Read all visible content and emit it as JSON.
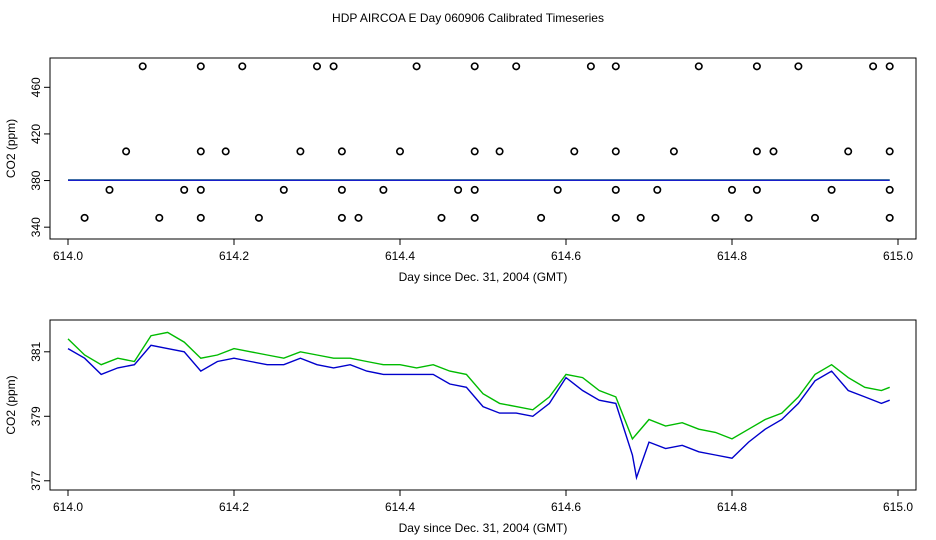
{
  "figure_title": "HDP AIRCOA E  Day 060906  Calibrated Timeseries",
  "colors": {
    "green": "#00bb00",
    "blue": "#0000cc",
    "points": "#000000"
  },
  "chart_data": [
    {
      "type": "scatter",
      "xlabel": "Day since Dec. 31, 2004 (GMT)",
      "ylabel": "CO2 (ppm)",
      "xlim": [
        614.0,
        615.0
      ],
      "ylim": [
        335,
        480
      ],
      "xticks": [
        "614.0",
        "614.2",
        "614.4",
        "614.6",
        "614.8",
        "615.0"
      ],
      "yticks": [
        "340",
        "380",
        "420",
        "460"
      ],
      "ytick_values": [
        340,
        380,
        420,
        460
      ],
      "xtick_values": [
        614.0,
        614.2,
        614.4,
        614.6,
        614.8,
        615.0
      ],
      "points": [
        [
          614.09,
          478
        ],
        [
          614.16,
          478
        ],
        [
          614.21,
          478
        ],
        [
          614.3,
          478
        ],
        [
          614.32,
          478
        ],
        [
          614.42,
          478
        ],
        [
          614.49,
          478
        ],
        [
          614.54,
          478
        ],
        [
          614.63,
          478
        ],
        [
          614.66,
          478
        ],
        [
          614.76,
          478
        ],
        [
          614.83,
          478
        ],
        [
          614.88,
          478
        ],
        [
          614.97,
          478
        ],
        [
          614.99,
          478
        ],
        [
          614.07,
          405
        ],
        [
          614.16,
          405
        ],
        [
          614.19,
          405
        ],
        [
          614.28,
          405
        ],
        [
          614.33,
          405
        ],
        [
          614.4,
          405
        ],
        [
          614.49,
          405
        ],
        [
          614.52,
          405
        ],
        [
          614.61,
          405
        ],
        [
          614.66,
          405
        ],
        [
          614.73,
          405
        ],
        [
          614.83,
          405
        ],
        [
          614.85,
          405
        ],
        [
          614.94,
          405
        ],
        [
          614.99,
          405
        ],
        [
          614.05,
          372
        ],
        [
          614.14,
          372
        ],
        [
          614.16,
          372
        ],
        [
          614.26,
          372
        ],
        [
          614.33,
          372
        ],
        [
          614.38,
          372
        ],
        [
          614.47,
          372
        ],
        [
          614.49,
          372
        ],
        [
          614.59,
          372
        ],
        [
          614.66,
          372
        ],
        [
          614.71,
          372
        ],
        [
          614.8,
          372
        ],
        [
          614.83,
          372
        ],
        [
          614.92,
          372
        ],
        [
          614.99,
          372
        ],
        [
          614.02,
          348
        ],
        [
          614.11,
          348
        ],
        [
          614.16,
          348
        ],
        [
          614.23,
          348
        ],
        [
          614.33,
          348
        ],
        [
          614.35,
          348
        ],
        [
          614.45,
          348
        ],
        [
          614.49,
          348
        ],
        [
          614.57,
          348
        ],
        [
          614.66,
          348
        ],
        [
          614.69,
          348
        ],
        [
          614.78,
          348
        ],
        [
          614.82,
          348
        ],
        [
          614.9,
          348
        ],
        [
          614.99,
          348
        ]
      ],
      "series": [
        {
          "color": "#00bb00",
          "x_start": 614.0,
          "x_end": 614.99,
          "level": 380.5
        },
        {
          "color": "#0000cc",
          "x_start": 614.0,
          "x_end": 614.99,
          "level": 380.3
        }
      ]
    },
    {
      "type": "line",
      "xlabel": "Day since Dec. 31, 2004 (GMT)",
      "ylabel": "CO2 (ppm)",
      "xlim": [
        614.0,
        615.0
      ],
      "ylim": [
        376.9,
        381.8
      ],
      "xticks": [
        "614.0",
        "614.2",
        "614.4",
        "614.6",
        "614.8",
        "615.0"
      ],
      "yticks": [
        "377",
        "379",
        "381"
      ],
      "ytick_values": [
        377,
        379,
        381
      ],
      "xtick_values": [
        614.0,
        614.2,
        614.4,
        614.6,
        614.8,
        615.0
      ],
      "series": [
        {
          "color": "#00bb00",
          "x": [
            614.0,
            614.02,
            614.04,
            614.06,
            614.08,
            614.1,
            614.12,
            614.14,
            614.16,
            614.18,
            614.2,
            614.22,
            614.24,
            614.26,
            614.28,
            614.3,
            614.32,
            614.34,
            614.36,
            614.38,
            614.4,
            614.42,
            614.44,
            614.46,
            614.48,
            614.5,
            614.52,
            614.54,
            614.56,
            614.58,
            614.6,
            614.62,
            614.64,
            614.66,
            614.68,
            614.7,
            614.72,
            614.74,
            614.76,
            614.78,
            614.8,
            614.82,
            614.84,
            614.86,
            614.88,
            614.9,
            614.92,
            614.94,
            614.96,
            614.98,
            614.99
          ],
          "y": [
            381.4,
            380.9,
            380.6,
            380.8,
            380.7,
            381.5,
            381.6,
            381.3,
            380.8,
            380.9,
            381.1,
            381.0,
            380.9,
            380.8,
            381.0,
            380.9,
            380.8,
            380.8,
            380.7,
            380.6,
            380.6,
            380.5,
            380.6,
            380.4,
            380.3,
            379.7,
            379.4,
            379.3,
            379.2,
            379.6,
            380.3,
            380.2,
            379.8,
            379.6,
            378.3,
            378.9,
            378.7,
            378.8,
            378.6,
            378.5,
            378.3,
            378.6,
            378.9,
            379.1,
            379.6,
            380.3,
            380.6,
            380.2,
            379.9,
            379.8,
            379.9
          ]
        },
        {
          "color": "#0000cc",
          "x": [
            614.0,
            614.02,
            614.04,
            614.06,
            614.08,
            614.1,
            614.12,
            614.14,
            614.16,
            614.18,
            614.2,
            614.22,
            614.24,
            614.26,
            614.28,
            614.3,
            614.32,
            614.34,
            614.36,
            614.38,
            614.4,
            614.42,
            614.44,
            614.46,
            614.48,
            614.5,
            614.52,
            614.54,
            614.56,
            614.58,
            614.6,
            614.62,
            614.64,
            614.66,
            614.68,
            614.685,
            614.7,
            614.72,
            614.74,
            614.76,
            614.78,
            614.8,
            614.82,
            614.84,
            614.86,
            614.88,
            614.9,
            614.92,
            614.94,
            614.96,
            614.98,
            614.99
          ],
          "y": [
            381.1,
            380.8,
            380.3,
            380.5,
            380.6,
            381.2,
            381.1,
            381.0,
            380.4,
            380.7,
            380.8,
            380.7,
            380.6,
            380.6,
            380.8,
            380.6,
            380.5,
            380.6,
            380.4,
            380.3,
            380.3,
            380.3,
            380.3,
            380.0,
            379.9,
            379.3,
            379.1,
            379.1,
            379.0,
            379.4,
            380.2,
            379.8,
            379.5,
            379.4,
            377.8,
            377.1,
            378.2,
            378.0,
            378.1,
            377.9,
            377.8,
            377.7,
            378.2,
            378.6,
            378.9,
            379.4,
            380.1,
            380.4,
            379.8,
            379.6,
            379.4,
            379.5
          ]
        }
      ]
    }
  ]
}
